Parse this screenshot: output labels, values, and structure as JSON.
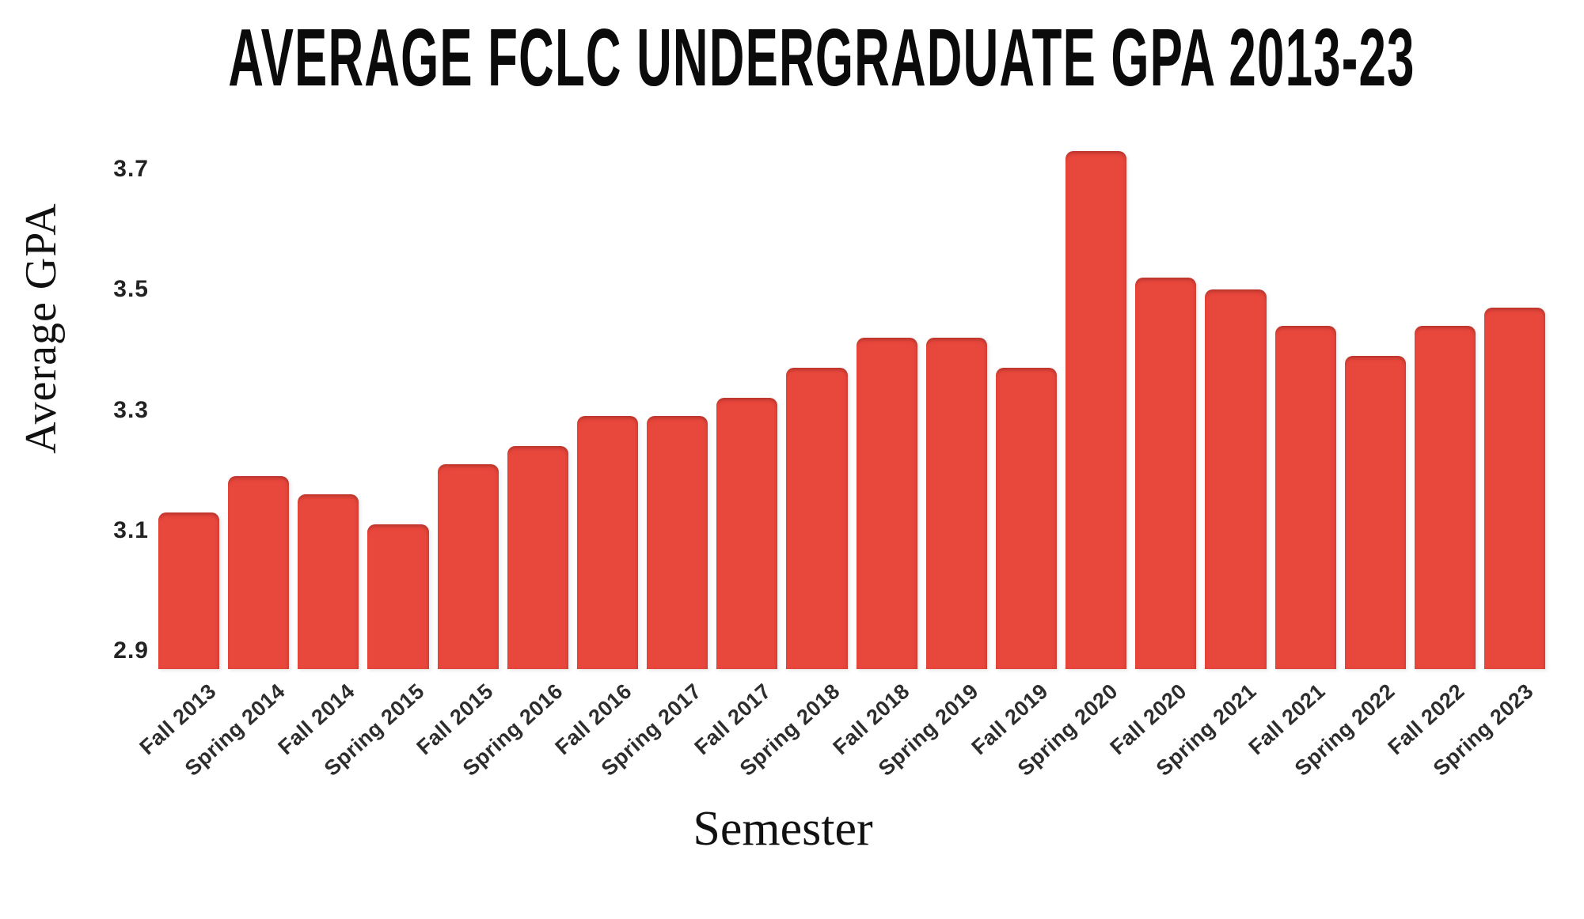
{
  "page": {
    "background": "#ffffff"
  },
  "chart_data": {
    "type": "bar",
    "title": "AVERAGE FCLC UNDERGRADUATE GPA 2013-23",
    "xlabel": "Semester",
    "ylabel": "Average GPA",
    "categories": [
      "Fall 2013",
      "Spring 2014",
      "Fall 2014",
      "Spring 2015",
      "Fall 2015",
      "Spring 2016",
      "Fall 2016",
      "Spring 2017",
      "Fall 2017",
      "Spring 2018",
      "Fall 2018",
      "Spring 2019",
      "Fall 2019",
      "Spring 2020",
      "Fall 2020",
      "Spring 2021",
      "Fall 2021",
      "Spring 2022",
      "Fall 2022",
      "Spring 2023"
    ],
    "values": [
      3.13,
      3.19,
      3.16,
      3.11,
      3.21,
      3.24,
      3.29,
      3.29,
      3.32,
      3.37,
      3.42,
      3.42,
      3.37,
      3.73,
      3.52,
      3.5,
      3.44,
      3.39,
      3.44,
      3.47
    ],
    "yticks": [
      2.9,
      3.1,
      3.3,
      3.5,
      3.7
    ],
    "ylim": [
      2.87,
      3.78
    ],
    "bar_color": "#e8473c",
    "title_color": "#0b0b0b",
    "tick_color": "#232323",
    "category_label_color": "#2d2d2d",
    "grid": false,
    "legend_position": "none"
  }
}
